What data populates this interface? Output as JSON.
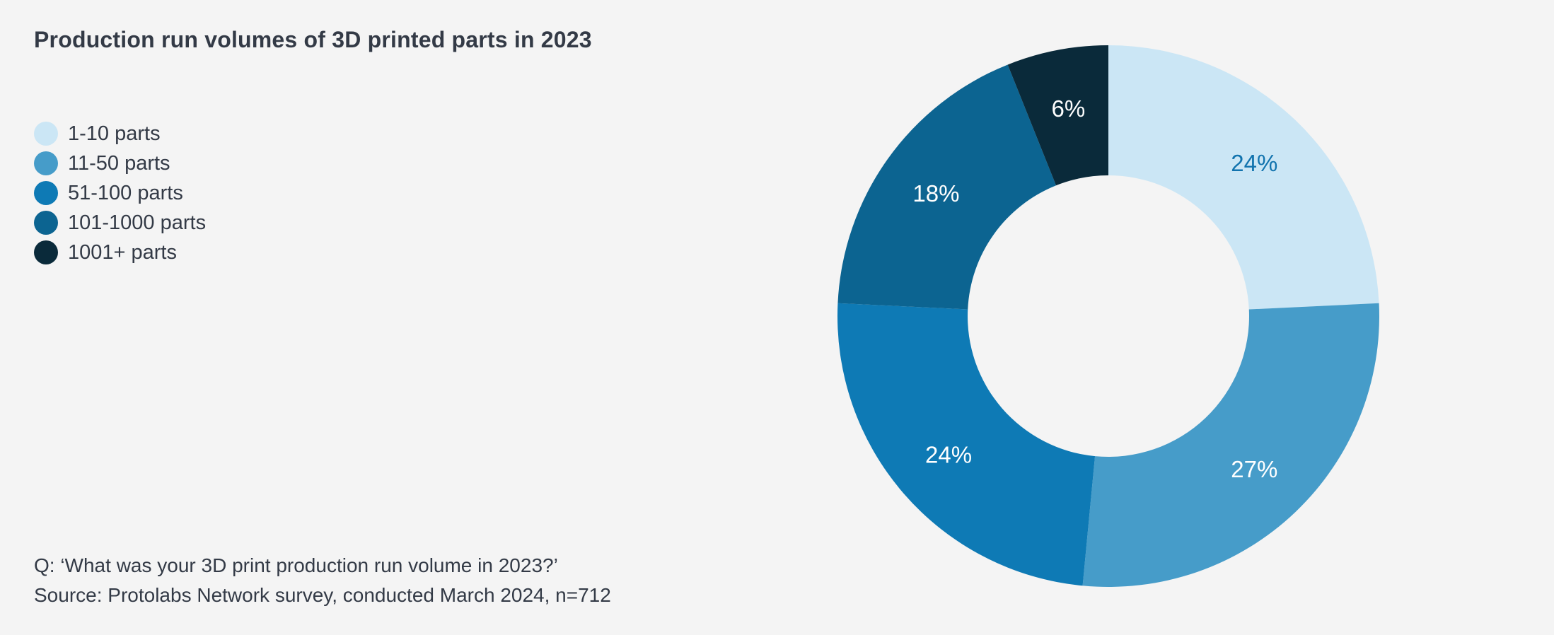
{
  "page": {
    "background": "#f4f4f4",
    "text_color": "#333a46"
  },
  "chart_data": {
    "type": "pie",
    "subtype": "donut",
    "title": "Production run volumes of 3D printed parts in 2023",
    "unit": "%",
    "legend_position": "left",
    "start_angle_deg": 0,
    "direction": "clockwise",
    "inner_radius_ratio": 0.52,
    "categories": [
      "1-10 parts",
      "11-50 parts",
      "51-100 parts",
      "101-1000 parts",
      "1001+ parts"
    ],
    "values": [
      24,
      27,
      24,
      18,
      6
    ],
    "segments": [
      {
        "label": "1-10 parts",
        "value": 24,
        "display": "24%",
        "color": "#cbe6f5",
        "label_color": "#1173ae"
      },
      {
        "label": "11-50 parts",
        "value": 27,
        "display": "27%",
        "color": "#469cc9",
        "label_color": "#ffffff"
      },
      {
        "label": "51-100 parts",
        "value": 24,
        "display": "24%",
        "color": "#0e7ab5",
        "label_color": "#ffffff"
      },
      {
        "label": "101-1000 parts",
        "value": 18,
        "display": "18%",
        "color": "#0c6491",
        "label_color": "#ffffff"
      },
      {
        "label": "1001+ parts",
        "value": 6,
        "display": "6%",
        "color": "#0a2a3a",
        "label_color": "#ffffff"
      }
    ]
  },
  "footer": {
    "question": "Q: ‘What was your 3D print production run volume in 2023?’",
    "source": "Source: Protolabs Network survey, conducted March 2024, n=712"
  }
}
